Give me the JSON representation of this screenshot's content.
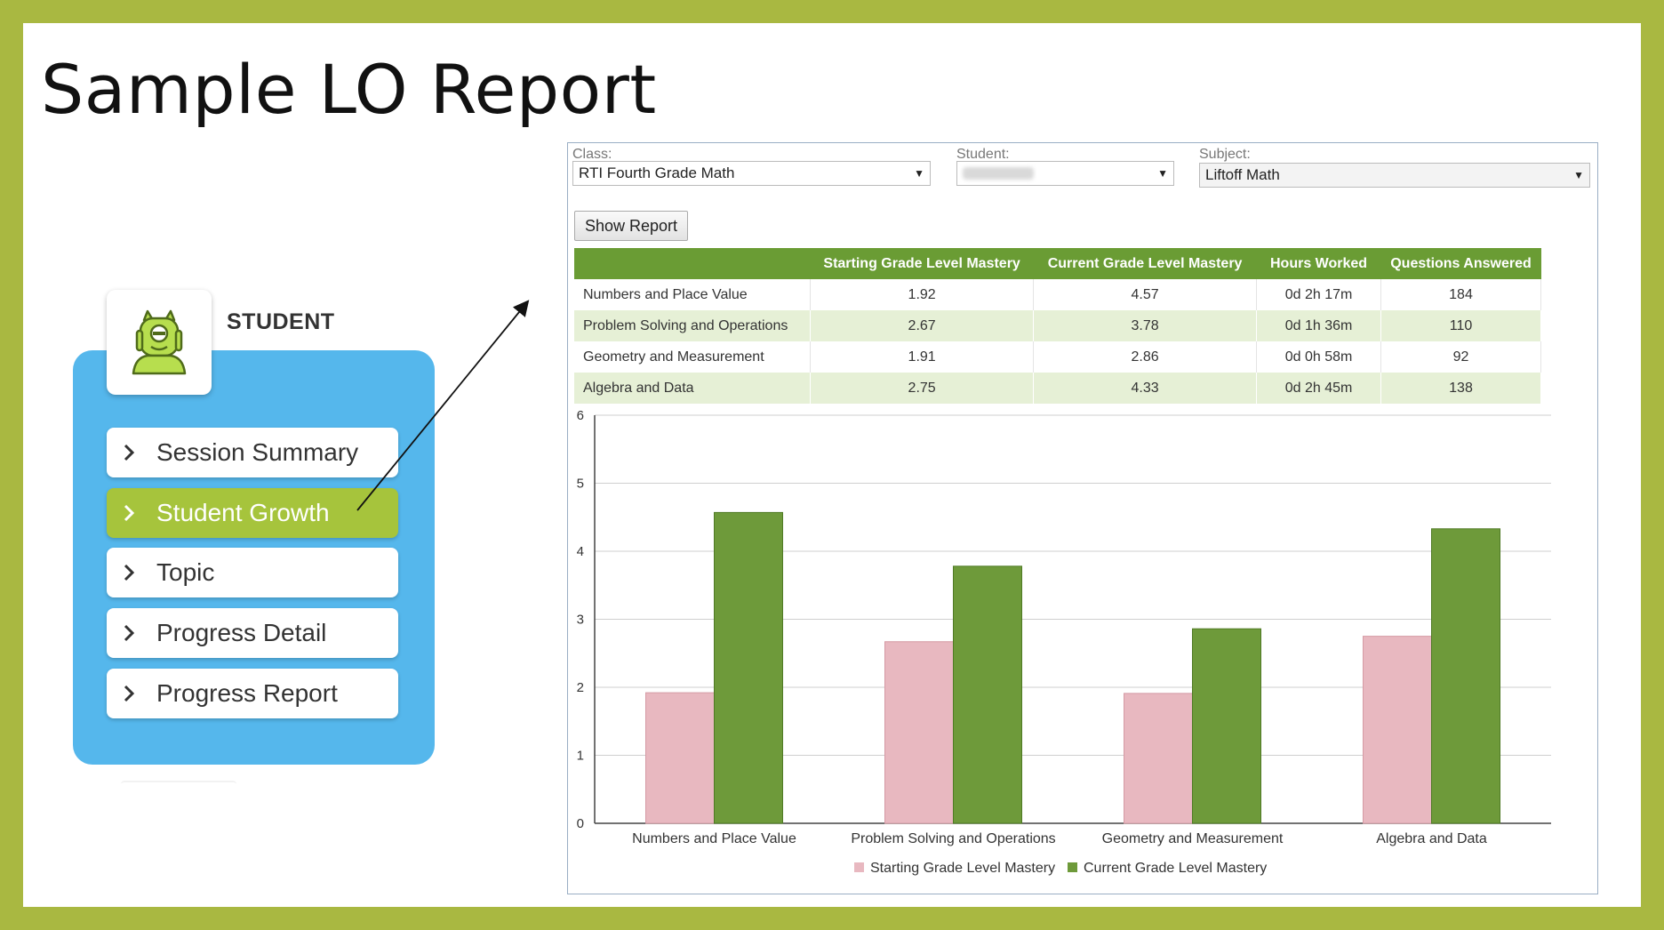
{
  "slide": {
    "title": "Sample LO Report"
  },
  "student_menu": {
    "heading": "STUDENT",
    "items": [
      {
        "label": "Session Summary",
        "active": false
      },
      {
        "label": "Student Growth",
        "active": true
      },
      {
        "label": "Topic",
        "active": false
      },
      {
        "label": "Progress Detail",
        "active": false
      },
      {
        "label": "Progress Report",
        "active": false
      }
    ]
  },
  "report": {
    "class_label": "Class:",
    "class_value": "RTI Fourth Grade Math",
    "student_label": "Student:",
    "subject_label": "Subject:",
    "subject_value": "Liftoff Math",
    "show_report_label": "Show Report",
    "table": {
      "headers": [
        "",
        "Starting Grade Level Mastery",
        "Current Grade Level Mastery",
        "Hours Worked",
        "Questions Answered"
      ],
      "rows": [
        [
          "Numbers and Place Value",
          "1.92",
          "4.57",
          "0d 2h 17m",
          "184"
        ],
        [
          "Problem Solving and Operations",
          "2.67",
          "3.78",
          "0d 1h 36m",
          "110"
        ],
        [
          "Geometry and Measurement",
          "1.91",
          "2.86",
          "0d 0h 58m",
          "92"
        ],
        [
          "Algebra and Data",
          "2.75",
          "4.33",
          "0d 2h 45m",
          "138"
        ]
      ]
    }
  },
  "colors": {
    "frame": "#a9b841",
    "menu_blue": "#55b7ec",
    "menu_active": "#a6c43c",
    "table_header": "#6a9c34",
    "starting_bar": "#e8b8c0",
    "current_bar": "#6e9a3a"
  },
  "chart_data": {
    "type": "bar",
    "categories": [
      "Numbers and Place Value",
      "Problem Solving and Operations",
      "Geometry and Measurement",
      "Algebra and Data"
    ],
    "series": [
      {
        "name": "Starting Grade Level Mastery",
        "values": [
          1.92,
          2.67,
          1.91,
          2.75
        ]
      },
      {
        "name": "Current Grade Level Mastery",
        "values": [
          4.57,
          3.78,
          2.86,
          4.33
        ]
      }
    ],
    "ylim": [
      0,
      6
    ],
    "yticks": [
      "0",
      "1",
      "2",
      "3",
      "4",
      "5",
      "6"
    ],
    "grid": true,
    "legend": "bottom"
  }
}
